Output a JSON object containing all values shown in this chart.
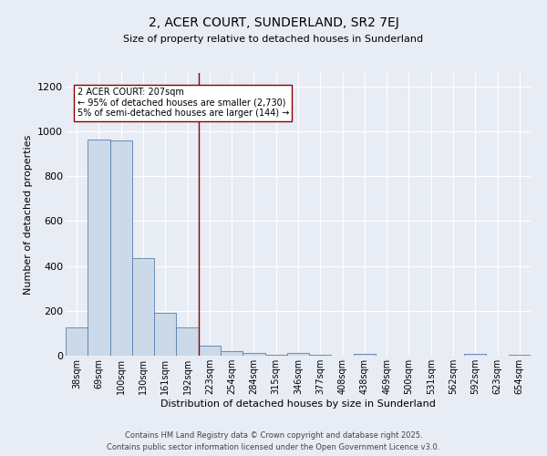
{
  "title": "2, ACER COURT, SUNDERLAND, SR2 7EJ",
  "subtitle": "Size of property relative to detached houses in Sunderland",
  "xlabel": "Distribution of detached houses by size in Sunderland",
  "ylabel": "Number of detached properties",
  "categories": [
    "38sqm",
    "69sqm",
    "100sqm",
    "130sqm",
    "161sqm",
    "192sqm",
    "223sqm",
    "254sqm",
    "284sqm",
    "315sqm",
    "346sqm",
    "377sqm",
    "408sqm",
    "438sqm",
    "469sqm",
    "500sqm",
    "531sqm",
    "562sqm",
    "592sqm",
    "623sqm",
    "654sqm"
  ],
  "values": [
    127,
    962,
    958,
    435,
    193,
    127,
    45,
    22,
    14,
    6,
    11,
    6,
    0,
    8,
    0,
    0,
    0,
    0,
    8,
    0,
    6
  ],
  "bar_color": "#ccd9e8",
  "bar_edge_color": "#5580b0",
  "vline_x_idx": 6,
  "vline_color": "#8b0000",
  "annotation_title": "2 ACER COURT: 207sqm",
  "annotation_line1": "← 95% of detached houses are smaller (2,730)",
  "annotation_line2": "5% of semi-detached houses are larger (144) →",
  "annotation_box_color": "#ffffff",
  "annotation_box_edge": "#8b0000",
  "ylim": [
    0,
    1260
  ],
  "yticks": [
    0,
    200,
    400,
    600,
    800,
    1000,
    1200
  ],
  "background_color": "#e8ecf4",
  "grid_color": "#ffffff",
  "footer1": "Contains HM Land Registry data © Crown copyright and database right 2025.",
  "footer2": "Contains public sector information licensed under the Open Government Licence v3.0."
}
